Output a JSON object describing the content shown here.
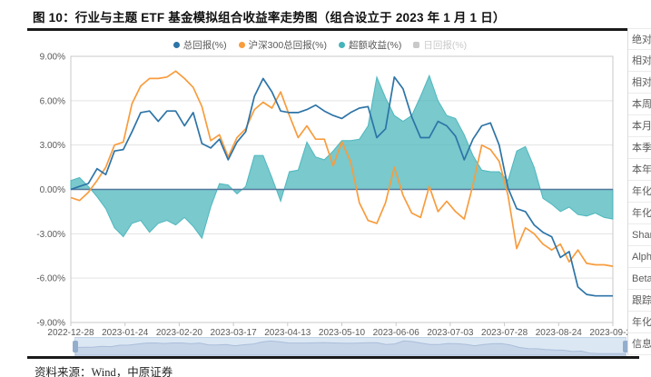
{
  "title": "图 10：行业与主题 ETF 基金模拟组合收益率走势图（组合设立于 2023 年 1 月 1 日）",
  "source_note": "资料来源：Wind，中原证券",
  "legend": [
    {
      "label": "总回报(%)",
      "color": "#2d74a7",
      "marker": "circle",
      "active": true
    },
    {
      "label": "沪深300总回报(%)",
      "color": "#f89c3d",
      "marker": "circle",
      "active": true
    },
    {
      "label": "超额收益(%)",
      "color": "#45b4ba",
      "marker": "circle",
      "active": true
    },
    {
      "label": "日回报(%)",
      "color": "#c9c9c9",
      "marker": "square",
      "active": false
    }
  ],
  "side_panel": {
    "row_labels": [
      "绝对",
      "相对",
      "相对",
      "本周",
      "本月",
      "本季",
      "本年",
      "年化",
      "年化",
      "Shar",
      "Alph",
      "Beta",
      "跟踪",
      "年化",
      "信息"
    ]
  },
  "chart_data": {
    "type": "line",
    "title": "行业与主题 ETF 基金模拟组合收益率走势图",
    "xlabel": "",
    "ylabel": "",
    "ylim": [
      -9,
      9
    ],
    "grid": true,
    "legend_position": "top",
    "zero_line": true,
    "y_tick_labels": [
      "9.00%",
      "6.00%",
      "3.00%",
      "0.00%",
      "-3.00%",
      "-6.00%",
      "-9.00%"
    ],
    "y_tick_values": [
      9,
      6,
      3,
      0,
      -3,
      -6,
      -9
    ],
    "categories": [
      "2022-12-28",
      "2023-01-24",
      "2023-02-20",
      "2023-03-17",
      "2023-04-13",
      "2023-05-10",
      "2023-06-06",
      "2023-07-03",
      "2023-07-28",
      "2023-08-24",
      "2023-09-20"
    ],
    "series": [
      {
        "name": "总回报(%)",
        "type": "line",
        "color": "#2d74a7",
        "values": [
          0.0,
          0.2,
          0.4,
          1.4,
          1.0,
          2.6,
          2.7,
          3.9,
          5.2,
          5.3,
          4.6,
          5.3,
          5.3,
          4.3,
          5.2,
          3.1,
          2.8,
          3.4,
          2.0,
          3.2,
          3.9,
          6.3,
          7.5,
          6.6,
          5.3,
          5.2,
          5.2,
          5.4,
          5.7,
          5.3,
          5.0,
          4.8,
          5.2,
          5.5,
          5.6,
          3.5,
          4.1,
          7.6,
          6.8,
          4.9,
          3.5,
          3.5,
          4.6,
          4.3,
          3.6,
          2.0,
          3.4,
          4.3,
          4.5,
          3.0,
          0.1,
          -1.3,
          -1.5,
          -2.4,
          -2.9,
          -3.2,
          -4.6,
          -4.2,
          -6.6,
          -7.1,
          -7.2,
          -7.2,
          -7.2
        ]
      },
      {
        "name": "沪深300总回报(%)",
        "type": "line",
        "color": "#f89c3d",
        "values": [
          -0.55,
          -0.75,
          -0.2,
          0.6,
          1.5,
          3.0,
          3.2,
          5.8,
          7.0,
          7.5,
          7.5,
          7.6,
          8.0,
          7.5,
          6.9,
          5.6,
          3.3,
          3.7,
          2.2,
          3.5,
          4.1,
          5.4,
          5.9,
          5.5,
          6.6,
          5.0,
          3.5,
          4.3,
          3.4,
          3.4,
          1.6,
          3.2,
          1.9,
          -0.9,
          -2.1,
          -2.3,
          -0.9,
          1.5,
          -0.4,
          -1.6,
          -1.9,
          0.2,
          -1.5,
          -0.8,
          -1.5,
          -2.0,
          0.3,
          3.0,
          2.7,
          1.9,
          -0.4,
          -4.0,
          -2.6,
          -3.0,
          -3.7,
          -4.1,
          -3.7,
          -4.9,
          -4.1,
          -5.0,
          -5.1,
          -5.1,
          -5.2
        ]
      },
      {
        "name": "超额收益(%)",
        "type": "area",
        "color": "#45b4ba",
        "fill_opacity": 0.72,
        "values": [
          0.6,
          0.8,
          0.2,
          -0.5,
          -1.3,
          -2.6,
          -3.2,
          -2.3,
          -2.1,
          -2.9,
          -2.3,
          -2.1,
          -2.4,
          -1.9,
          -2.5,
          -3.3,
          -1.2,
          0.4,
          0.3,
          -0.3,
          0.2,
          2.3,
          2.3,
          0.8,
          -0.8,
          1.2,
          1.3,
          3.2,
          2.2,
          2.0,
          2.6,
          3.3,
          3.3,
          3.4,
          4.3,
          7.6,
          6.2,
          5.0,
          4.6,
          5.0,
          6.3,
          7.7,
          6.0,
          5.0,
          4.8,
          3.7,
          2.3,
          1.3,
          1.2,
          1.2,
          0.6,
          2.6,
          2.9,
          1.5,
          -0.6,
          -1.0,
          -1.5,
          -1.2,
          -1.7,
          -1.8,
          -1.6,
          -1.9,
          -2.0
        ]
      },
      {
        "name": "日回报(%)",
        "type": "bar",
        "color": "#c9c9c9",
        "hidden": true,
        "values": []
      }
    ]
  }
}
